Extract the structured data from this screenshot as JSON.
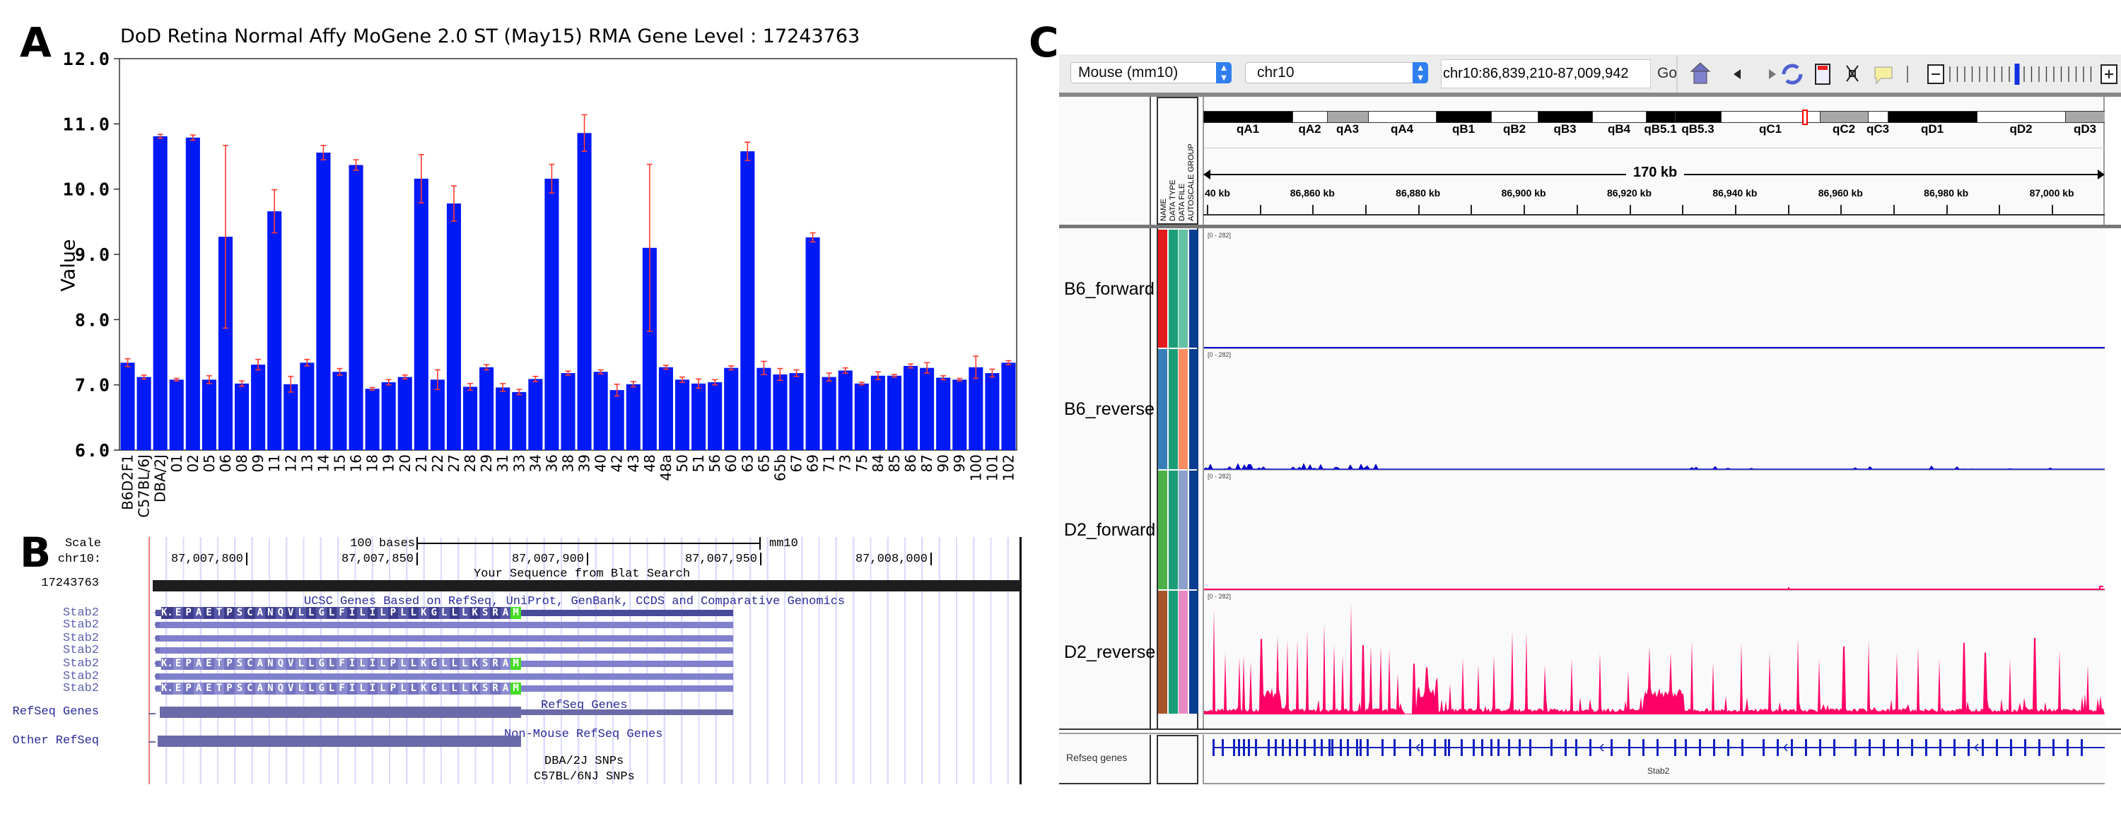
{
  "panel_labels": {
    "a": "A",
    "b": "B",
    "c": "C"
  },
  "chart_data": {
    "type": "bar",
    "title": "DoD Retina Normal Affy MoGene 2.0 ST (May15) RMA Gene Level : 17243763",
    "xlabel": "",
    "ylabel": "Value",
    "ylim": [
      6.0,
      12.0
    ],
    "yticks": [
      "6.0",
      "7.0",
      "8.0",
      "9.0",
      "10.0",
      "11.0",
      "12.0"
    ],
    "grid": false,
    "colors": {
      "bar": "#0019f5",
      "error": "#ff3b30"
    },
    "categories": [
      "B6D2F1",
      "C57BL/6J",
      "DBA/2J",
      "01",
      "02",
      "05",
      "06",
      "08",
      "09",
      "11",
      "12",
      "13",
      "14",
      "15",
      "16",
      "18",
      "19",
      "20",
      "21",
      "22",
      "27",
      "28",
      "29",
      "31",
      "33",
      "34",
      "36",
      "38",
      "39",
      "40",
      "42",
      "43",
      "48",
      "48a",
      "50",
      "51",
      "56",
      "60",
      "63",
      "65",
      "65b",
      "67",
      "69",
      "71",
      "73",
      "75",
      "84",
      "85",
      "86",
      "87",
      "90",
      "99",
      "100",
      "101",
      "102"
    ],
    "values": [
      7.34,
      7.12,
      10.81,
      7.08,
      10.79,
      7.08,
      9.27,
      7.02,
      7.31,
      9.66,
      7.01,
      7.34,
      10.56,
      7.2,
      10.37,
      6.94,
      7.04,
      7.12,
      10.16,
      7.08,
      9.78,
      6.97,
      7.27,
      6.96,
      6.89,
      7.09,
      10.16,
      7.18,
      10.86,
      7.2,
      6.92,
      7.01,
      9.1,
      7.27,
      7.08,
      7.02,
      7.04,
      7.26,
      10.58,
      7.26,
      7.16,
      7.18,
      9.26,
      7.12,
      7.22,
      7.02,
      7.14,
      7.14,
      7.29,
      7.26,
      7.11,
      7.08,
      7.27,
      7.18,
      7.34
    ],
    "errors": [
      0.06,
      0.03,
      0.03,
      0.02,
      0.04,
      0.06,
      1.4,
      0.04,
      0.08,
      0.33,
      0.12,
      0.05,
      0.11,
      0.05,
      0.08,
      0.02,
      0.04,
      0.03,
      0.37,
      0.15,
      0.27,
      0.05,
      0.04,
      0.06,
      0.04,
      0.04,
      0.22,
      0.03,
      0.28,
      0.03,
      0.09,
      0.04,
      1.28,
      0.03,
      0.04,
      0.07,
      0.04,
      0.03,
      0.14,
      0.1,
      0.09,
      0.05,
      0.07,
      0.06,
      0.04,
      0.02,
      0.06,
      0.02,
      0.03,
      0.08,
      0.03,
      0.02,
      0.17,
      0.06,
      0.03
    ]
  },
  "ucsc": {
    "scale_label": "Scale",
    "chrom_label": "chr10:",
    "scale_bar": "100 bases",
    "assembly": "mm10",
    "positions": [
      "87,007,800",
      "87,007,850",
      "87,007,900",
      "87,007,950",
      "87,008,000"
    ],
    "blat_title": "Your Sequence from Blat Search",
    "blat_name": "17243763",
    "ucsc_title": "UCSC Genes Based on RefSeq, UniProt, GenBank, CCDS and Comparative Genomics",
    "transcripts": [
      {
        "name": "Stab2",
        "aa": true
      },
      {
        "name": "Stab2",
        "aa": false
      },
      {
        "name": "Stab2",
        "aa": false
      },
      {
        "name": "Stab2",
        "aa": false
      },
      {
        "name": "Stab2",
        "aa": true
      },
      {
        "name": "Stab2",
        "aa": false
      },
      {
        "name": "Stab2",
        "aa": true
      }
    ],
    "amino_acids": [
      "K.",
      "E",
      "P",
      "A",
      "E",
      "T",
      "P",
      "S",
      "C",
      "A",
      "N",
      "Q",
      "V",
      "L",
      "L",
      "G",
      "L",
      "F",
      "I",
      "L",
      "I",
      "L",
      "P",
      "L",
      "L",
      "K",
      "G",
      "L",
      "L",
      "L",
      "K",
      "S",
      "R",
      "A",
      "M"
    ],
    "refseq_title": "RefSeq Genes",
    "refseq_label": "RefSeq Genes",
    "nonmouse_title": "Non-Mouse RefSeq Genes",
    "other_label": "Other RefSeq",
    "snp1": "DBA/2J SNPs",
    "snp2": "C57BL/6NJ SNPs",
    "colors": {
      "transcript": "#8080cc",
      "refseq": "#6a6aa8",
      "start_codon": "#44dd22",
      "blat": "#1e1e1e"
    }
  },
  "igv": {
    "genome": "Mouse (mm10)",
    "chromosome": "chr10",
    "locus": "chr10:86,839,210-87,009,942",
    "go": "Go",
    "toolbar_icons": [
      "home-icon",
      "back-icon",
      "forward-icon",
      "refresh-icon",
      "ruler-icon",
      "resize-icon",
      "popup-info-icon"
    ],
    "zoom_level": 0.45,
    "attribute_headers": [
      "NAME",
      "DATA TYPE",
      "DATA FILE",
      "AUTOSCALE GROUP"
    ],
    "bands": [
      {
        "name": "qA1",
        "stain": "black"
      },
      {
        "name": "qA2",
        "stain": "white"
      },
      {
        "name": "qA3",
        "stain": "gray"
      },
      {
        "name": "qA4",
        "stain": "white"
      },
      {
        "name": "qB1",
        "stain": "black"
      },
      {
        "name": "qB2",
        "stain": "white"
      },
      {
        "name": "qB3",
        "stain": "black"
      },
      {
        "name": "qB4",
        "stain": "white"
      },
      {
        "name": "qB5.1",
        "stain": "black"
      },
      {
        "name": "qB5.3",
        "stain": "black"
      },
      {
        "name": "qC1",
        "stain": "white"
      },
      {
        "name": "qC2",
        "stain": "gray"
      },
      {
        "name": "qC3",
        "stain": "white"
      },
      {
        "name": "qD1",
        "stain": "black"
      },
      {
        "name": "qD2",
        "stain": "white"
      },
      {
        "name": "qD3",
        "stain": "gray"
      }
    ],
    "span_label": "170 kb",
    "ticks": [
      "40 kb",
      "86,860 kb",
      "86,880 kb",
      "86,900 kb",
      "86,920 kb",
      "86,940 kb",
      "86,960 kb",
      "86,980 kb",
      "87,000 kb"
    ],
    "tracks": [
      {
        "name": "B6_forward",
        "range": "[0 - 282]",
        "attrs": [
          "#e41a1c",
          "#1b9e77",
          "#66c2a5",
          "#0b3d91"
        ],
        "color": "#0000c8"
      },
      {
        "name": "B6_reverse",
        "range": "[0 - 282]",
        "attrs": [
          "#377eb8",
          "#1b9e77",
          "#fc8d62",
          "#0b3d91"
        ],
        "color": "#0000c8"
      },
      {
        "name": "D2_forward",
        "range": "[0 - 282]",
        "attrs": [
          "#4daf4a",
          "#1b9e77",
          "#8da0cb",
          "#0b3d91"
        ],
        "color": "#ff0066"
      },
      {
        "name": "D2_reverse",
        "range": "[0 - 282]",
        "attrs": [
          "#a6542a",
          "#1b9e77",
          "#e78ac3",
          "#0b3d91"
        ],
        "color": "#ff0066"
      }
    ],
    "refseq_track": "Refseq genes",
    "gene": "Stab2"
  }
}
